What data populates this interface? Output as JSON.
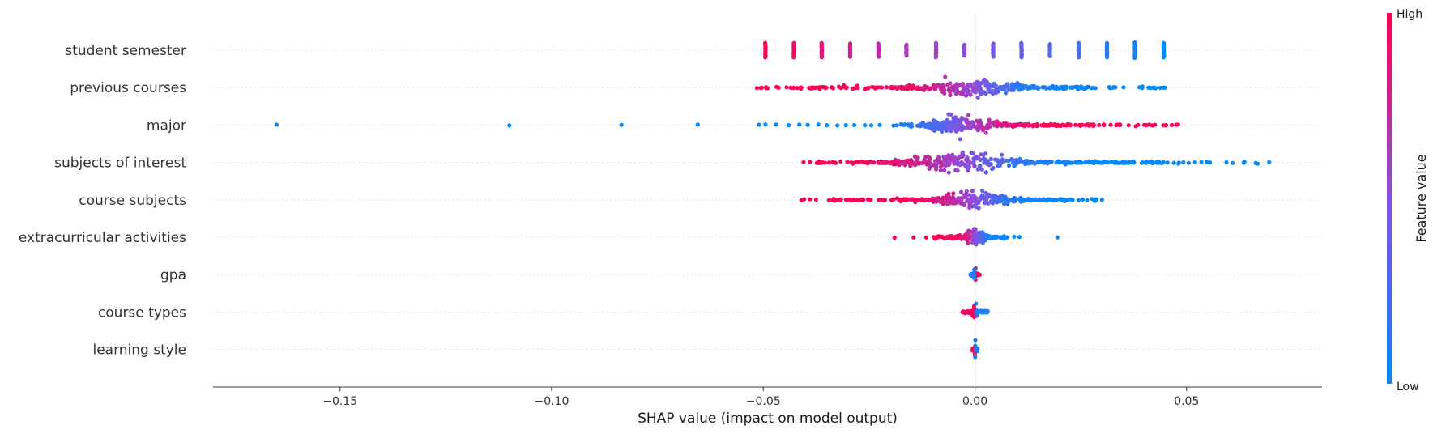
{
  "chart_data": {
    "type": "scatter",
    "subtype": "shap-beeswarm",
    "title": "",
    "xlabel": "SHAP value (impact on model output)",
    "xlim": [
      -0.18,
      0.082
    ],
    "x_ticks": [
      -0.15,
      -0.1,
      -0.05,
      0.0,
      0.05
    ],
    "x_tick_labels": [
      "−0.15",
      "−0.10",
      "−0.05",
      "0.00",
      "0.05"
    ],
    "zero_line": 0.0,
    "grid": false,
    "colorbar": {
      "title": "Feature value",
      "high_label": "High",
      "low_label": "Low",
      "low_color": "#008bfb",
      "mid_color": "#8a4fe0",
      "high_color": "#ff0052",
      "placement": "right"
    },
    "features": [
      {
        "name": "student semester",
        "kind": "discrete",
        "groups": [
          {
            "x": -0.0495,
            "v": 1.0,
            "n": 14
          },
          {
            "x": -0.0428,
            "v": 0.93,
            "n": 14
          },
          {
            "x": -0.0362,
            "v": 0.86,
            "n": 14
          },
          {
            "x": -0.0295,
            "v": 0.79,
            "n": 13
          },
          {
            "x": -0.0228,
            "v": 0.72,
            "n": 13
          },
          {
            "x": -0.0162,
            "v": 0.64,
            "n": 11
          },
          {
            "x": -0.0092,
            "v": 0.58,
            "n": 14
          },
          {
            "x": -0.0025,
            "v": 0.52,
            "n": 11
          },
          {
            "x": 0.0043,
            "v": 0.44,
            "n": 13
          },
          {
            "x": 0.011,
            "v": 0.37,
            "n": 14
          },
          {
            "x": 0.0177,
            "v": 0.3,
            "n": 12
          },
          {
            "x": 0.0245,
            "v": 0.22,
            "n": 14
          },
          {
            "x": 0.0312,
            "v": 0.15,
            "n": 14
          },
          {
            "x": 0.0378,
            "v": 0.05,
            "n": 15
          },
          {
            "x": 0.0446,
            "v": 0.0,
            "n": 14
          }
        ]
      },
      {
        "name": "previous courses",
        "kind": "continuous",
        "range": [
          -0.052,
          0.046
        ],
        "peak": 0.0,
        "high_side": "negative",
        "count": 360,
        "spread": 8,
        "outliers_high": [
          -0.0515,
          -0.049,
          -0.0465,
          -0.0445,
          -0.042,
          -0.041,
          -0.0385,
          -0.037,
          -0.0355,
          -0.0335
        ],
        "outliers_low": [
          0.0395,
          0.041,
          0.0425,
          0.0445
        ]
      },
      {
        "name": "major",
        "kind": "continuous",
        "range": [
          -0.02,
          0.048
        ],
        "peak": -0.003,
        "high_side": "positive",
        "count": 340,
        "spread": 9,
        "outliers_low": [
          -0.165,
          -0.11,
          -0.0835,
          -0.0655,
          -0.051,
          -0.0495,
          -0.047,
          -0.044,
          -0.0415,
          -0.0395,
          -0.037,
          -0.035,
          -0.0325,
          -0.0305,
          -0.0285,
          -0.026,
          -0.0245,
          -0.0225
        ],
        "outliers_high": [
          0.0385,
          0.0405,
          0.0425,
          0.0445,
          0.0465,
          0.048
        ]
      },
      {
        "name": "subjects of interest",
        "kind": "continuous",
        "range": [
          -0.041,
          0.07
        ],
        "peak": -0.002,
        "high_side": "negative",
        "count": 380,
        "spread": 10,
        "outliers_high": [
          -0.0405,
          -0.039,
          -0.0365,
          -0.0345,
          -0.033
        ],
        "outliers_low": [
          0.03,
          0.033,
          0.035,
          0.0375,
          0.0405,
          0.043,
          0.0445,
          0.047,
          0.0505,
          0.052,
          0.0535,
          0.0555,
          0.0635,
          0.0695
        ]
      },
      {
        "name": "course subjects",
        "kind": "continuous",
        "range": [
          -0.041,
          0.03
        ],
        "peak": 0.0,
        "high_side": "negative",
        "count": 330,
        "spread": 8,
        "outliers_high": [
          -0.041,
          -0.039,
          -0.0345,
          -0.0295,
          -0.0275
        ],
        "outliers_low": [
          0.0225,
          0.0245,
          0.0265,
          0.0285,
          0.03
        ]
      },
      {
        "name": "extracurricular activities",
        "kind": "continuous",
        "range": [
          -0.012,
          0.01
        ],
        "peak": 0.0,
        "high_side": "negative",
        "count": 190,
        "spread": 8,
        "outliers_high": [
          -0.019,
          -0.0145,
          -0.0115
        ],
        "outliers_low": [
          0.0105,
          0.0195
        ]
      },
      {
        "name": "gpa",
        "kind": "tight",
        "range": [
          -0.001,
          0.0012
        ],
        "peak": 0.0,
        "high_side": "positive",
        "count": 70,
        "spread": 9
      },
      {
        "name": "course types",
        "kind": "tight",
        "range": [
          -0.003,
          0.003
        ],
        "peak": 0.0,
        "high_side": "negative",
        "count": 70,
        "spread": 9
      },
      {
        "name": "learning style",
        "kind": "tight",
        "range": [
          -0.0006,
          0.0006
        ],
        "peak": 0.0,
        "high_side": "negative",
        "count": 70,
        "spread": 9
      }
    ]
  }
}
